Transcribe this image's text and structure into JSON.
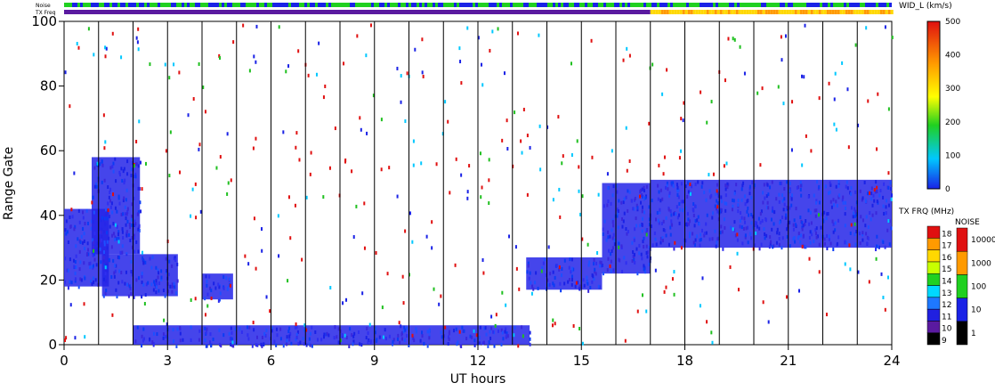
{
  "chart_data": {
    "type": "heatmap",
    "xlabel": "UT hours",
    "ylabel": "Range Gate",
    "xlim": [
      0,
      24
    ],
    "ylim": [
      0,
      100
    ],
    "x_ticks": [
      "0",
      "3",
      "6",
      "9",
      "12",
      "15",
      "18",
      "21",
      "24"
    ],
    "y_ticks": [
      "0",
      "20",
      "40",
      "60",
      "80",
      "100"
    ],
    "hour_dividers": [
      1,
      2,
      3,
      4,
      5,
      6,
      7,
      8,
      9,
      10,
      11,
      12,
      13,
      14,
      15,
      16,
      17,
      18,
      19,
      20,
      21,
      22,
      23
    ],
    "top_bars": {
      "noise_label": "Noise",
      "txfreq_label": "TX Freq",
      "txfreq_change_hour": 17
    },
    "colorbar_width": {
      "title": "WID_L (km/s)",
      "ticks": [
        "0",
        "100",
        "200",
        "300",
        "400",
        "500"
      ],
      "range": [
        0,
        500
      ]
    },
    "colorbar_txfreq": {
      "title": "TX FRQ (MHz)",
      "ticks": [
        "9",
        "10",
        "11",
        "12",
        "13",
        "14",
        "15",
        "16",
        "17",
        "18"
      ]
    },
    "colorbar_noise": {
      "title": "NOISE",
      "ticks": [
        "1",
        "10",
        "100",
        "1000",
        "10000"
      ]
    },
    "echo_regions": [
      {
        "t0": 0.0,
        "t1": 1.3,
        "g0": 18,
        "g1": 42,
        "level": "low"
      },
      {
        "t0": 0.8,
        "t1": 2.2,
        "g0": 28,
        "g1": 58,
        "level": "low"
      },
      {
        "t0": 1.1,
        "t1": 3.3,
        "g0": 15,
        "g1": 28,
        "level": "low"
      },
      {
        "t0": 4.0,
        "t1": 4.9,
        "g0": 14,
        "g1": 22,
        "level": "low"
      },
      {
        "t0": 13.4,
        "t1": 15.6,
        "g0": 17,
        "g1": 27,
        "level": "low"
      },
      {
        "t0": 15.6,
        "t1": 17.0,
        "g0": 22,
        "g1": 50,
        "level": "low"
      },
      {
        "t0": 17.0,
        "t1": 24.0,
        "g0": 30,
        "g1": 51,
        "level": "low"
      },
      {
        "t0": 2.0,
        "t1": 13.5,
        "g0": 0,
        "g1": 6,
        "level": "low"
      }
    ]
  }
}
